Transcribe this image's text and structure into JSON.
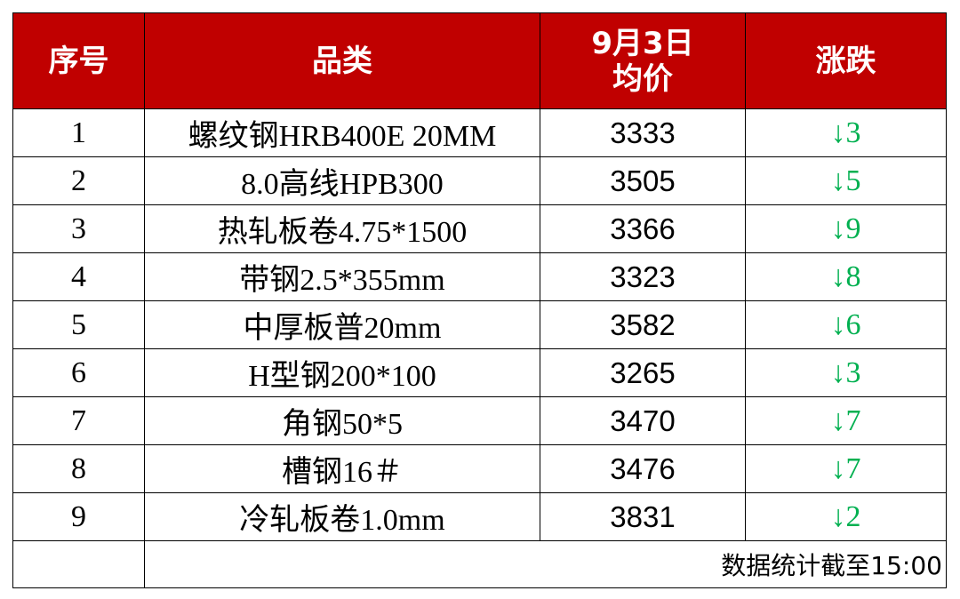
{
  "table": {
    "header": [
      "序号",
      "品类",
      [
        "9月3日",
        "均价"
      ],
      "涨跌"
    ],
    "rows": [
      [
        1,
        "螺纹钢HRB400E 20MM",
        3333,
        "↓3"
      ],
      [
        2,
        "8.0高线HPB300",
        3505,
        "↓5"
      ],
      [
        3,
        "热轧板卷4.75*1500",
        3366,
        "↓9"
      ],
      [
        4,
        "带钢2.5*355mm",
        3323,
        "↓8"
      ],
      [
        5,
        "中厚板普20mm",
        3582,
        "↓6"
      ],
      [
        6,
        "H型钢200*100",
        3265,
        "↓3"
      ],
      [
        7,
        "角钢50*5",
        3470,
        "↓7"
      ],
      [
        8,
        "槽钢16＃",
        3476,
        "↓7"
      ],
      [
        9,
        "冷轧板卷1.0mm",
        3831,
        "↓2"
      ]
    ],
    "note": "数据统计截至15:00"
  }
}
